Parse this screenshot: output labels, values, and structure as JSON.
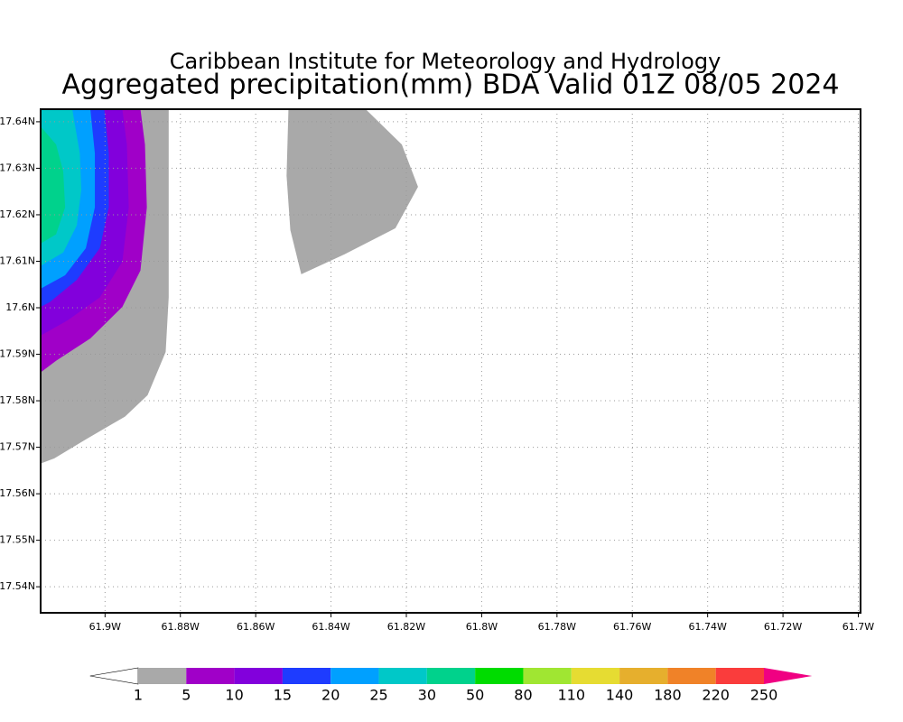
{
  "chart_data": {
    "type": "contour",
    "title": "Caribbean Institute for Meteorology and Hydrology",
    "subtitle": "Aggregated precipitation(mm) BDA Valid 01Z 08/05 2024",
    "xlim": [
      -61.9171,
      -61.6994
    ],
    "ylim": [
      17.5344,
      17.6427
    ],
    "grid": true,
    "xticks": [
      {
        "value": -61.9,
        "label": "61.9W"
      },
      {
        "value": -61.88,
        "label": "61.88W"
      },
      {
        "value": -61.86,
        "label": "61.86W"
      },
      {
        "value": -61.84,
        "label": "61.84W"
      },
      {
        "value": -61.82,
        "label": "61.82W"
      },
      {
        "value": -61.8,
        "label": "61.8W"
      },
      {
        "value": -61.78,
        "label": "61.78W"
      },
      {
        "value": -61.76,
        "label": "61.76W"
      },
      {
        "value": -61.74,
        "label": "61.74W"
      },
      {
        "value": -61.72,
        "label": "61.72W"
      },
      {
        "value": -61.7,
        "label": "61.7W"
      }
    ],
    "yticks": [
      {
        "value": 17.54,
        "label": "17.54N"
      },
      {
        "value": 17.55,
        "label": "17.55N"
      },
      {
        "value": 17.56,
        "label": "17.56N"
      },
      {
        "value": 17.57,
        "label": "17.57N"
      },
      {
        "value": 17.58,
        "label": "17.58N"
      },
      {
        "value": 17.59,
        "label": "17.59N"
      },
      {
        "value": 17.6,
        "label": "17.6N"
      },
      {
        "value": 17.61,
        "label": "17.61N"
      },
      {
        "value": 17.62,
        "label": "17.62N"
      },
      {
        "value": 17.63,
        "label": "17.63N"
      },
      {
        "value": 17.64,
        "label": "17.64N"
      }
    ],
    "levels": [
      1,
      5,
      10,
      15,
      20,
      25,
      30,
      50,
      80,
      110,
      140,
      180,
      220,
      250
    ],
    "colors": [
      "#ffffff",
      "#a9a9a9",
      "#a000c8",
      "#8200dc",
      "#1e3cff",
      "#00a0ff",
      "#00c8c8",
      "#00d28c",
      "#00dc00",
      "#a0e632",
      "#e6dc32",
      "#e6af2d",
      "#f08228",
      "#fa3c3c",
      "#f00082"
    ],
    "contours": [
      {
        "level": 1,
        "lon": [
          -61.9171,
          -61.8831,
          -61.8831,
          -61.8839,
          -61.8887,
          -61.8947,
          -61.9051,
          -61.9135,
          -61.9171
        ],
        "lat": [
          17.6427,
          17.6427,
          17.6022,
          17.5905,
          17.5812,
          17.5766,
          17.5717,
          17.5676,
          17.5665
        ]
      },
      {
        "level": 1,
        "lon": [
          -61.8513,
          -61.8308,
          -61.8212,
          -61.8169,
          -61.8229,
          -61.8364,
          -61.8479,
          -61.8508,
          -61.8518
        ],
        "lat": [
          17.6427,
          17.6427,
          17.6351,
          17.626,
          17.6171,
          17.6115,
          17.6072,
          17.6167,
          17.6284
        ]
      },
      {
        "level": 5,
        "lon": [
          -61.9171,
          -61.8906,
          -61.8894,
          -61.8889,
          -61.8906,
          -61.8954,
          -61.9039,
          -61.913,
          -61.9171
        ],
        "lat": [
          17.6427,
          17.6427,
          17.6351,
          17.6216,
          17.608,
          17.6002,
          17.5934,
          17.5886,
          17.5861
        ]
      },
      {
        "level": 10,
        "lon": [
          -61.9171,
          -61.8954,
          -61.8942,
          -61.8937,
          -61.8954,
          -61.9014,
          -61.9099,
          -61.9171
        ],
        "lat": [
          17.6427,
          17.6427,
          17.6351,
          17.6216,
          17.6099,
          17.6022,
          17.5973,
          17.594
        ]
      },
      {
        "level": 15,
        "lon": [
          -61.9171,
          -61.9002,
          -61.899,
          -61.899,
          -61.9014,
          -61.9075,
          -61.9147,
          -61.9171
        ],
        "lat": [
          17.6427,
          17.6427,
          17.6332,
          17.6216,
          17.6128,
          17.606,
          17.6012,
          17.6002
        ]
      },
      {
        "level": 20,
        "lon": [
          -61.9171,
          -61.9039,
          -61.9027,
          -61.9027,
          -61.9051,
          -61.9106,
          -61.9171
        ],
        "lat": [
          17.6427,
          17.6427,
          17.6332,
          17.6216,
          17.6128,
          17.607,
          17.6041
        ]
      },
      {
        "level": 25,
        "lon": [
          -61.9171,
          -61.9087,
          -61.9067,
          -61.9063,
          -61.9075,
          -61.9111,
          -61.9171
        ],
        "lat": [
          17.6427,
          17.6427,
          17.6332,
          17.6254,
          17.6177,
          17.6119,
          17.609
        ]
      },
      {
        "level": 30,
        "lon": [
          -61.9171,
          -61.913,
          -61.9111,
          -61.9106,
          -61.913,
          -61.9171
        ],
        "lat": [
          17.639,
          17.6351,
          17.6293,
          17.6216,
          17.6158,
          17.6138
        ]
      }
    ]
  }
}
